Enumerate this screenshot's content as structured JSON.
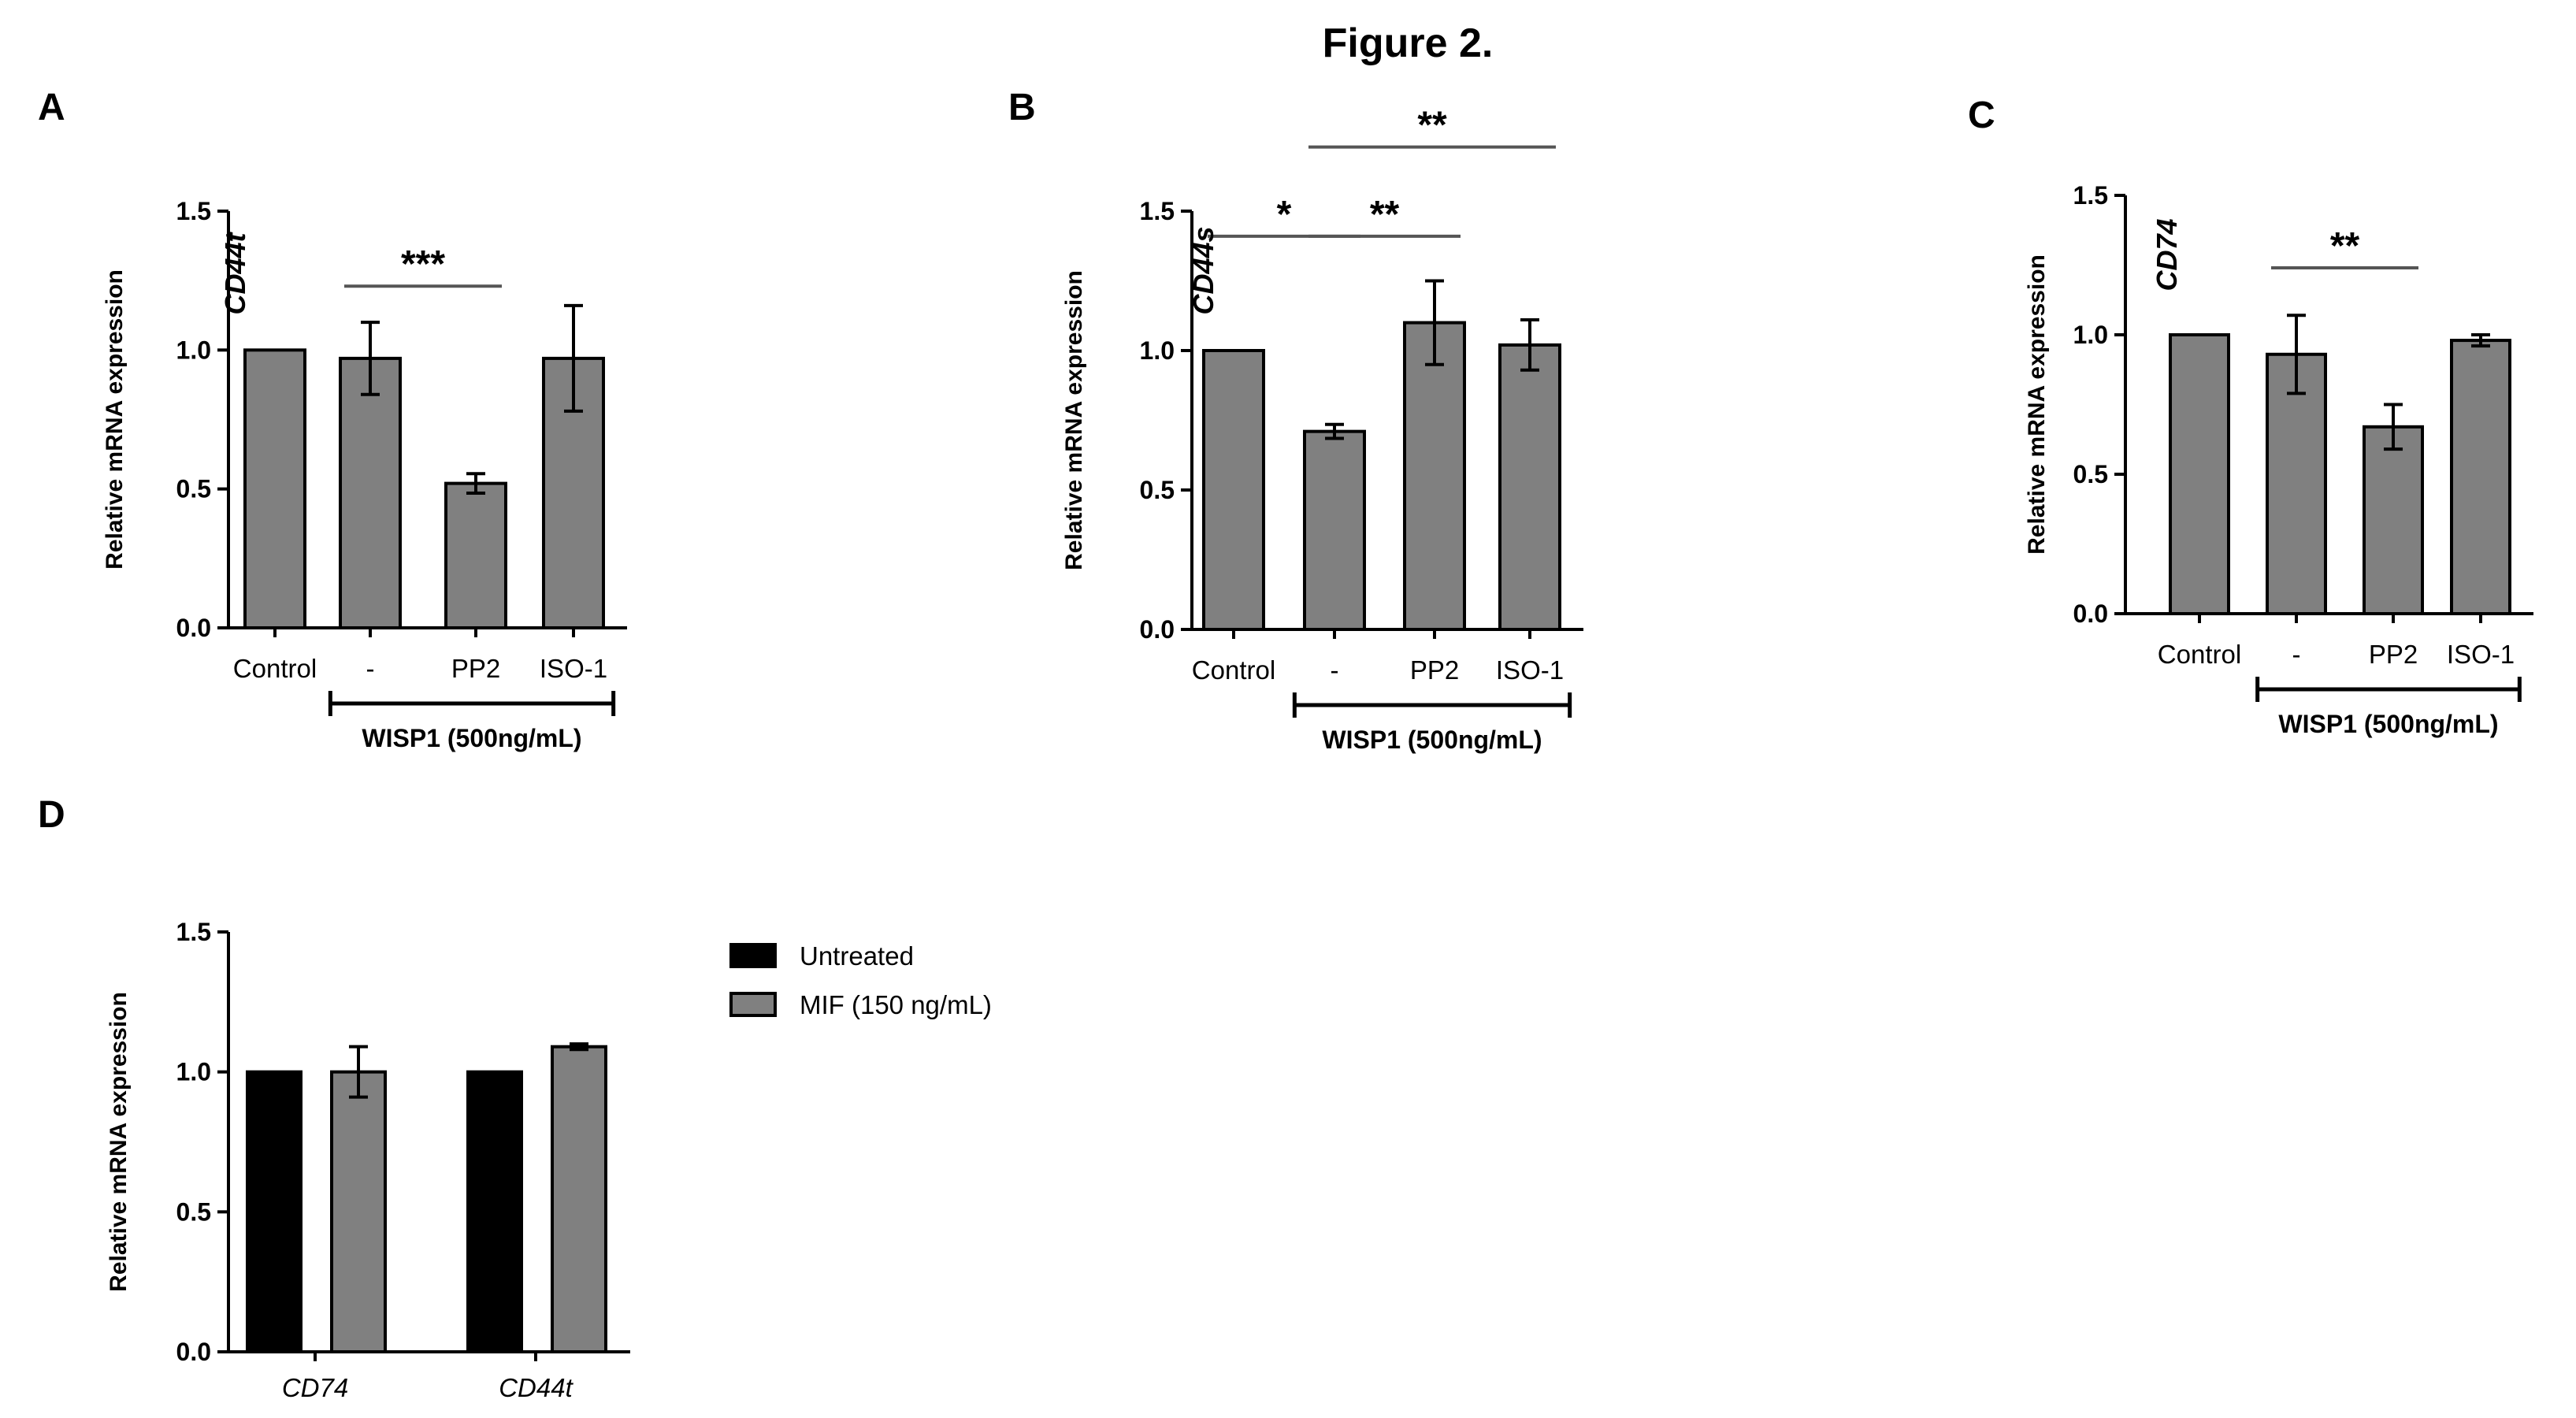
{
  "figure_title": "Figure 2.",
  "colors": {
    "bar_gray": "#808080",
    "bar_black": "#000000",
    "line": "#000000",
    "sig_line": "#555555"
  },
  "chart_data": [
    {
      "panel": "A",
      "type": "bar",
      "gene_label": "CD44t",
      "ylabel": "Relative mRNA expression",
      "ylim": [
        0,
        1.5
      ],
      "yticks": [
        "0.0",
        "0.5",
        "1.0",
        "1.5"
      ],
      "categories": [
        "Control",
        "-",
        "PP2",
        "ISO-1"
      ],
      "values": [
        1.0,
        0.97,
        0.52,
        0.97
      ],
      "errors": [
        0,
        0.13,
        0.035,
        0.19
      ],
      "group_label": "WISP1 (500ng/mL)",
      "group_span": [
        1,
        3
      ],
      "significance": [
        {
          "from": 1,
          "to": 2,
          "label": "***",
          "y": 1.23
        }
      ]
    },
    {
      "panel": "B",
      "type": "bar",
      "gene_label": "CD44s",
      "ylabel": "Relative mRNA expression",
      "ylim": [
        0,
        1.5
      ],
      "yticks": [
        "0.0",
        "0.5",
        "1.0",
        "1.5"
      ],
      "categories": [
        "Control",
        "-",
        "PP2",
        "ISO-1"
      ],
      "values": [
        1.0,
        0.71,
        1.1,
        1.02
      ],
      "errors": [
        0,
        0.025,
        0.15,
        0.09
      ],
      "group_label": "WISP1 (500ng/mL)",
      "group_span": [
        1,
        3
      ],
      "significance": [
        {
          "from": 0,
          "to": 1,
          "label": "*",
          "y": 1.41
        },
        {
          "from": 1,
          "to": 2,
          "label": "**",
          "y": 1.41
        },
        {
          "from": 1,
          "to": 3,
          "label": "**",
          "y": 1.73
        }
      ]
    },
    {
      "panel": "C",
      "type": "bar",
      "gene_label": "CD74",
      "ylabel": "Relative mRNA expression",
      "ylim": [
        0,
        1.5
      ],
      "yticks": [
        "0.0",
        "0.5",
        "1.0",
        "1.5"
      ],
      "categories": [
        "Control",
        "-",
        "PP2",
        "ISO-1"
      ],
      "values": [
        1.0,
        0.93,
        0.67,
        0.98
      ],
      "errors": [
        0,
        0.14,
        0.08,
        0.02
      ],
      "group_label": "WISP1 (500ng/mL)",
      "group_span": [
        1,
        3
      ],
      "significance": [
        {
          "from": 1,
          "to": 2,
          "label": "**",
          "y": 1.24
        }
      ]
    },
    {
      "panel": "D",
      "type": "bar",
      "ylabel": "Relative mRNA expression",
      "ylim": [
        0,
        1.5
      ],
      "yticks": [
        "0.0",
        "0.5",
        "1.0",
        "1.5"
      ],
      "categories": [
        "CD74",
        "CD44t"
      ],
      "series": [
        {
          "name": "Untreated",
          "color": "#000000",
          "values": [
            1.0,
            1.0
          ],
          "errors": [
            0,
            0
          ]
        },
        {
          "name": "MIF (150 ng/mL)",
          "color": "#808080",
          "values": [
            1.0,
            1.09
          ],
          "errors": [
            0.09,
            0.01
          ]
        }
      ],
      "legend": "right"
    }
  ]
}
